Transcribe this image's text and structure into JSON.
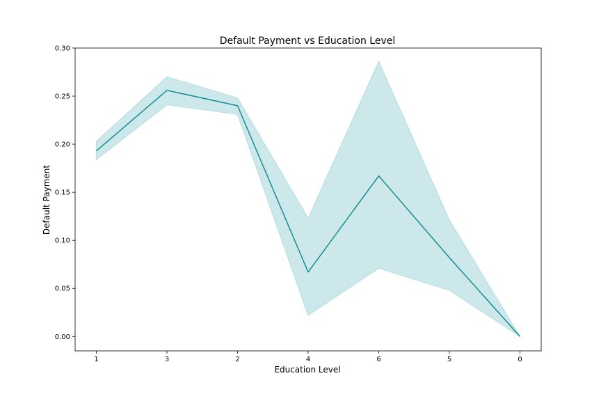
{
  "chart_data": {
    "type": "line",
    "title": "Default Payment vs Education Level",
    "xlabel": "Education Level",
    "ylabel": "Default Payment",
    "categories": [
      "1",
      "3",
      "2",
      "4",
      "6",
      "5",
      "0"
    ],
    "series": [
      {
        "values": [
          0.193,
          0.256,
          0.24,
          0.067,
          0.167,
          0.082,
          0.0
        ],
        "ci_lower": [
          0.184,
          0.241,
          0.231,
          0.022,
          0.071,
          0.048,
          0.0
        ],
        "ci_upper": [
          0.203,
          0.27,
          0.248,
          0.123,
          0.286,
          0.121,
          0.0
        ]
      }
    ],
    "ylim": [
      -0.015,
      0.3
    ],
    "yticks": [
      "0.00",
      "0.05",
      "0.10",
      "0.15",
      "0.20",
      "0.25",
      "0.30"
    ],
    "grid": false,
    "colors": {
      "line": "#138d90",
      "band": "#b2dcdf",
      "axes": "#000000"
    }
  }
}
